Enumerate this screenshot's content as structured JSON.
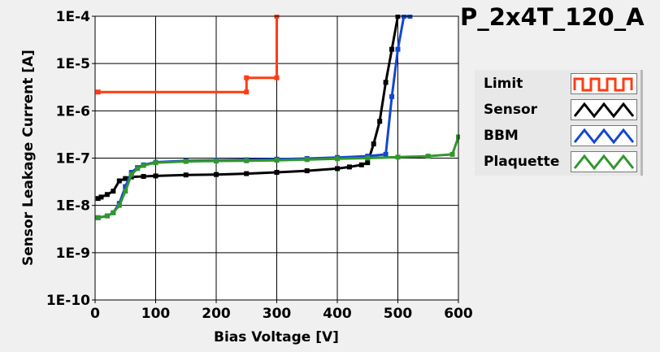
{
  "chart_data": {
    "type": "line",
    "title": "P_2x4T_120_A",
    "xlabel": "Bias Voltage [V]",
    "ylabel": "Sensor Leakage Current [A]",
    "xlim": [
      0,
      600
    ],
    "ylim": [
      1e-10,
      0.0001
    ],
    "yscale": "log",
    "grid": true,
    "legend_placement": "right",
    "x_ticks": [
      0,
      100,
      200,
      300,
      400,
      500,
      600
    ],
    "x_tick_labels": [
      "0",
      "100",
      "200",
      "300",
      "400",
      "500",
      "600"
    ],
    "y_ticks": [
      1e-10,
      1e-09,
      1e-08,
      1e-07,
      1e-06,
      1e-05,
      0.0001
    ],
    "y_tick_labels": [
      "1E-10",
      "1E-9",
      "1E-8",
      "1E-7",
      "1E-6",
      "1E-5",
      "1E-4"
    ],
    "series": [
      {
        "name": "Limit",
        "color": "#ff3c14",
        "x": [
          5,
          250,
          250,
          300,
          300
        ],
        "y": [
          2.5e-06,
          2.5e-06,
          5e-06,
          5e-06,
          0.0001
        ]
      },
      {
        "name": "Sensor",
        "color": "#000000",
        "x": [
          5,
          10,
          20,
          30,
          40,
          50,
          60,
          80,
          100,
          150,
          200,
          250,
          300,
          350,
          400,
          420,
          440,
          450,
          460,
          470,
          480,
          490,
          500
        ],
        "y": [
          1.4e-08,
          1.5e-08,
          1.7e-08,
          2e-08,
          3.3e-08,
          3.7e-08,
          4e-08,
          4.1e-08,
          4.2e-08,
          4.4e-08,
          4.5e-08,
          4.7e-08,
          5e-08,
          5.4e-08,
          6e-08,
          6.5e-08,
          7.2e-08,
          8e-08,
          2e-07,
          6e-07,
          4e-06,
          2e-05,
          0.0001
        ]
      },
      {
        "name": "BBM",
        "color": "#1446d2",
        "x": [
          5,
          20,
          30,
          40,
          50,
          60,
          70,
          80,
          100,
          150,
          200,
          250,
          300,
          350,
          400,
          450,
          480,
          490,
          500,
          510,
          520
        ],
        "y": [
          5.5e-09,
          6e-09,
          7e-09,
          1.1e-08,
          2.5e-08,
          5e-08,
          6.3e-08,
          7.2e-08,
          8.2e-08,
          8.8e-08,
          9e-08,
          9.2e-08,
          9.5e-08,
          9.8e-08,
          1.03e-07,
          1.1e-07,
          1.2e-07,
          2e-06,
          2e-05,
          0.0001,
          0.0001
        ]
      },
      {
        "name": "Plaquette",
        "color": "#32962d",
        "x": [
          5,
          20,
          30,
          40,
          50,
          60,
          70,
          80,
          100,
          150,
          200,
          250,
          300,
          350,
          400,
          450,
          500,
          550,
          590,
          600
        ],
        "y": [
          5.5e-09,
          6e-09,
          7e-09,
          1e-08,
          2e-08,
          4.5e-08,
          6e-08,
          7e-08,
          8e-08,
          8.5e-08,
          8.7e-08,
          8.8e-08,
          9e-08,
          9.3e-08,
          9.7e-08,
          1e-07,
          1.05e-07,
          1.1e-07,
          1.2e-07,
          2.8e-07
        ]
      }
    ]
  }
}
